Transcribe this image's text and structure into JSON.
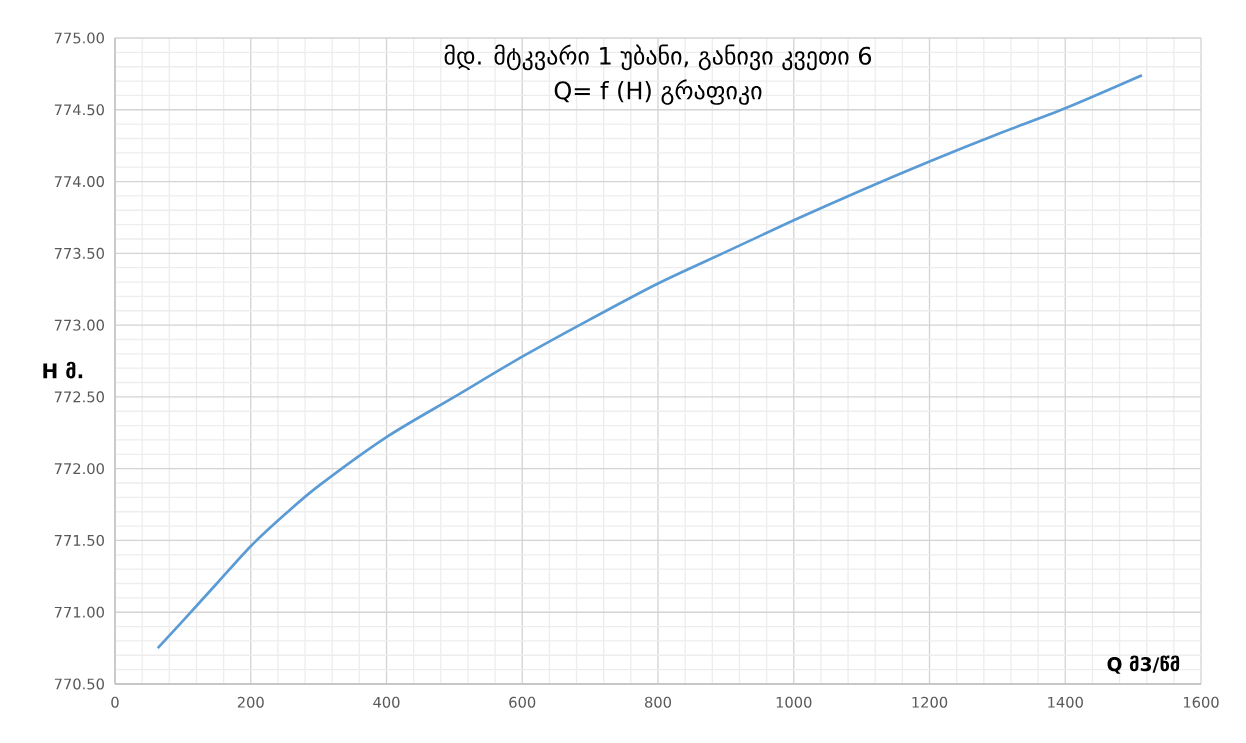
{
  "chart_data": {
    "type": "line",
    "title": "მდ. მტკვარი 1 უბანი, განივი კვეთი 6",
    "subtitle": "Q= f (H) გრაფიკი",
    "xlabel": "Q მ3/წმ",
    "ylabel": "H მ.",
    "x": [
      63,
      100,
      150,
      200,
      250,
      300,
      400,
      500,
      600,
      700,
      800,
      900,
      1000,
      1100,
      1200,
      1300,
      1400,
      1513
    ],
    "series": [
      {
        "color": "#5b9bd5",
        "values": [
          770.75,
          770.94,
          771.2,
          771.46,
          771.68,
          771.88,
          772.22,
          772.5,
          772.78,
          773.04,
          773.29,
          773.51,
          773.73,
          773.94,
          774.14,
          774.33,
          774.51,
          774.74
        ]
      }
    ],
    "xlim": [
      0,
      1600
    ],
    "xticks": [
      0,
      200,
      400,
      600,
      800,
      1000,
      1200,
      1400,
      1600
    ],
    "ylim": [
      770.5,
      775
    ],
    "yticks": [
      {
        "value": 770.5,
        "label": "770.50"
      },
      {
        "value": 771,
        "label": "771.00"
      },
      {
        "value": 771.5,
        "label": "771.50"
      },
      {
        "value": 772,
        "label": "772.00"
      },
      {
        "value": 772.5,
        "label": "772.50"
      },
      {
        "value": 773,
        "label": "773.00"
      },
      {
        "value": 773.5,
        "label": "773.50"
      },
      {
        "value": 774,
        "label": "774.00"
      },
      {
        "value": 774.5,
        "label": "774.50"
      },
      {
        "value": 775,
        "label": "775.00"
      }
    ],
    "grid": true,
    "marker": "none",
    "line_style": "solid"
  }
}
